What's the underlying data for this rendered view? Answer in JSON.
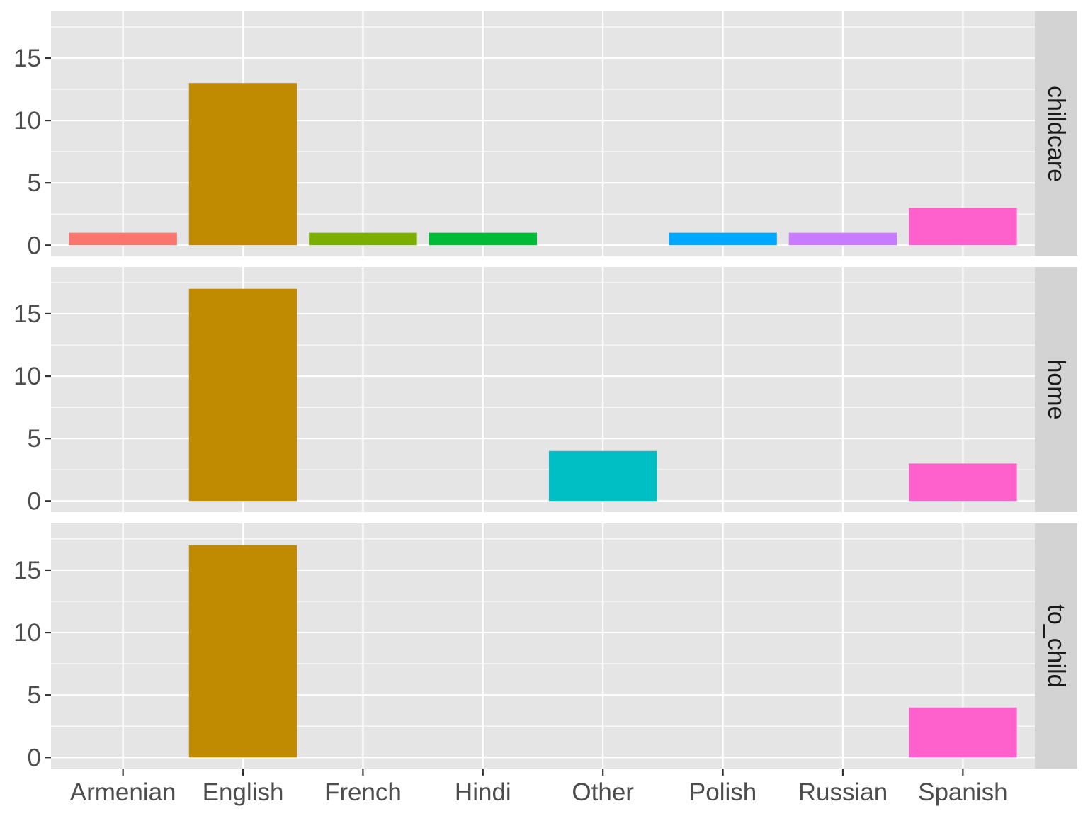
{
  "chart_data": {
    "type": "bar",
    "layout": "facet-rows",
    "categories": [
      "Armenian",
      "English",
      "French",
      "Hindi",
      "Other",
      "Polish",
      "Russian",
      "Spanish"
    ],
    "colors": [
      "#F8766D",
      "#C08B00",
      "#7CAE00",
      "#00BA38",
      "#00BFC4",
      "#00A9FF",
      "#C77CFF",
      "#FF61CC"
    ],
    "yticks": [
      0,
      5,
      10,
      15
    ],
    "ylim": [
      0,
      17.85
    ],
    "title": "",
    "xlabel": "",
    "ylabel": "",
    "grid": true,
    "legend": "none",
    "panels": [
      {
        "name": "childcare",
        "values": [
          1,
          13,
          1,
          1,
          0,
          1,
          1,
          3
        ]
      },
      {
        "name": "home",
        "values": [
          0,
          17,
          0,
          0,
          4,
          0,
          0,
          3
        ]
      },
      {
        "name": "to_child",
        "values": [
          0,
          17,
          0,
          0,
          0,
          0,
          0,
          4
        ]
      }
    ]
  }
}
